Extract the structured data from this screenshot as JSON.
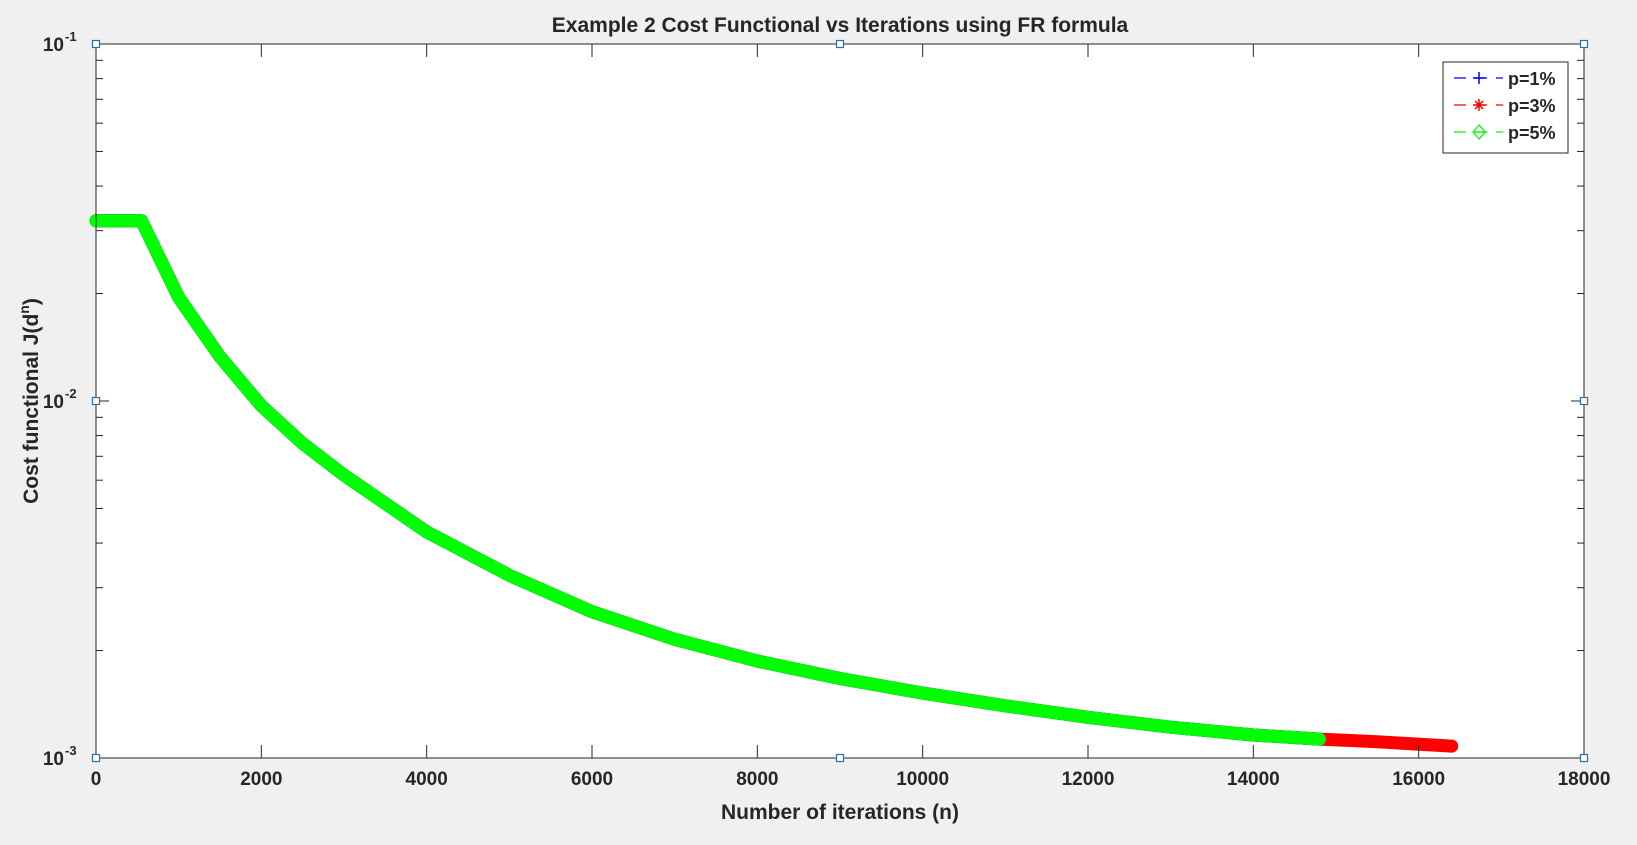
{
  "chart_data": {
    "type": "line",
    "title": "Example 2 Cost Functional vs Iterations using FR formula",
    "xlabel": "Number of iterations (n)",
    "ylabel_main": "Cost functional J(d",
    "ylabel_sup": "n",
    "ylabel_close": ")",
    "xlim": [
      0,
      18000
    ],
    "ylim": [
      0.001,
      0.1
    ],
    "yscale": "log",
    "grid": false,
    "legend_position": "top-right",
    "x_ticks": [
      0,
      2000,
      4000,
      6000,
      8000,
      10000,
      12000,
      14000,
      16000,
      18000
    ],
    "x_tick_labels": [
      "0",
      "2000",
      "4000",
      "6000",
      "8000",
      "10000",
      "12000",
      "14000",
      "16000",
      "18000"
    ],
    "y_ticks": [
      {
        "value": 0.001,
        "base": "10",
        "exp": "-3"
      },
      {
        "value": 0.01,
        "base": "10",
        "exp": "-2"
      },
      {
        "value": 0.1,
        "base": "10",
        "exp": "-1"
      }
    ],
    "series": [
      {
        "name": "p=1%",
        "color": "#0000ff",
        "marker": "plus",
        "x": [
          0,
          550,
          1000,
          1500,
          2000,
          2500,
          3000,
          4000,
          5000,
          6000,
          7000,
          8000,
          9000,
          10000,
          11000,
          12000,
          13000,
          14000,
          14800
        ],
        "y": [
          0.032,
          0.032,
          0.0195,
          0.0133,
          0.0097,
          0.0076,
          0.0062,
          0.0043,
          0.00325,
          0.00257,
          0.00215,
          0.00187,
          0.00167,
          0.00152,
          0.0014,
          0.0013,
          0.00122,
          0.00116,
          0.00113
        ]
      },
      {
        "name": "p=3%",
        "color": "#ff0000",
        "marker": "asterisk",
        "x": [
          0,
          550,
          1000,
          1500,
          2000,
          2500,
          3000,
          4000,
          5000,
          6000,
          7000,
          8000,
          9000,
          10000,
          11000,
          12000,
          13000,
          14000,
          14800,
          15500,
          16400
        ],
        "y": [
          0.032,
          0.032,
          0.0195,
          0.0133,
          0.0097,
          0.0076,
          0.0062,
          0.0043,
          0.00325,
          0.00257,
          0.00215,
          0.00187,
          0.00167,
          0.00152,
          0.0014,
          0.0013,
          0.00122,
          0.00116,
          0.00113,
          0.00111,
          0.00108
        ]
      },
      {
        "name": "p=5%",
        "color": "#00ff00",
        "marker": "diamond",
        "x": [
          0,
          550,
          1000,
          1500,
          2000,
          2500,
          3000,
          4000,
          5000,
          6000,
          7000,
          8000,
          9000,
          10000,
          11000,
          12000,
          13000,
          14000,
          14800
        ],
        "y": [
          0.032,
          0.032,
          0.0195,
          0.0133,
          0.0097,
          0.0076,
          0.0062,
          0.0043,
          0.00325,
          0.00257,
          0.00215,
          0.00187,
          0.00167,
          0.00152,
          0.0014,
          0.0013,
          0.00122,
          0.00116,
          0.00113
        ]
      }
    ]
  }
}
